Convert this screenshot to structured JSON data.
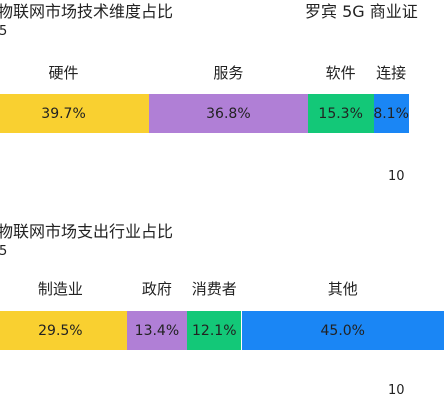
{
  "charts_meta": {
    "header_right": "罗宾 5G 商业证"
  },
  "chart_data": [
    {
      "type": "bar",
      "stacked": true,
      "orientation": "horizontal",
      "title": "物联网市场技术维度占比",
      "year_label": "5",
      "axis_label": "10",
      "unit": "%",
      "grid": false,
      "categories": [
        "硬件",
        "服务",
        "软件",
        "连接"
      ],
      "values": [
        39.7,
        36.8,
        15.3,
        8.1
      ],
      "value_labels": [
        "39.7%",
        "36.8%",
        "15.3%",
        "8.1%"
      ],
      "colors": [
        "#f9d030",
        "#b07fd6",
        "#13c878",
        "#1a86f5"
      ]
    },
    {
      "type": "bar",
      "stacked": true,
      "orientation": "horizontal",
      "title": "物联网市场支出行业占比",
      "year_label": "5",
      "axis_label": "10",
      "unit": "%",
      "grid": false,
      "categories": [
        "制造业",
        "政府",
        "消费者",
        "其他"
      ],
      "values": [
        29.5,
        13.4,
        12.1,
        45.0
      ],
      "value_labels": [
        "29.5%",
        "13.4%",
        "12.1%",
        "45.0%"
      ],
      "colors": [
        "#f9d030",
        "#b07fd6",
        "#13c878",
        "#1a86f5"
      ]
    }
  ]
}
